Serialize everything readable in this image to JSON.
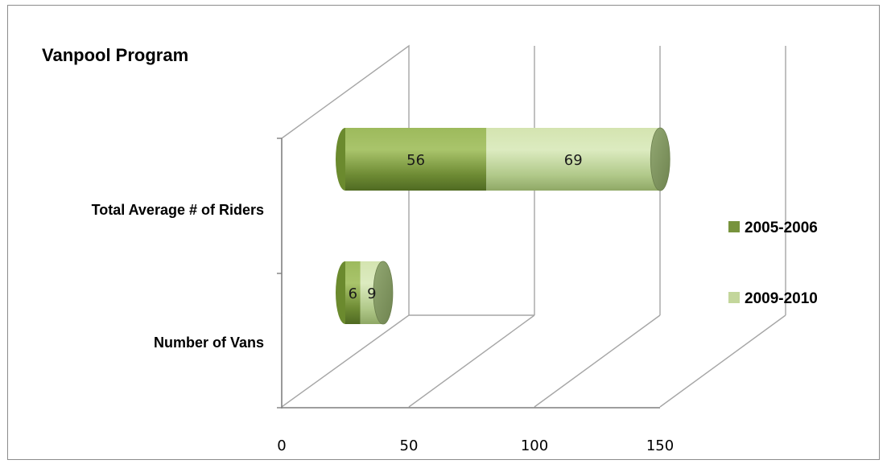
{
  "chart_data": {
    "type": "bar",
    "orientation": "horizontal",
    "style": "3d-stacked-cylinder",
    "title": "Vanpool Program",
    "categories": [
      "Total Average # of Riders",
      "Number of Vans"
    ],
    "series": [
      {
        "name": "2005-2006",
        "values": [
          56,
          6
        ],
        "color": "#77933c"
      },
      {
        "name": "2009-2010",
        "values": [
          69,
          9
        ],
        "color": "#c3d69b"
      }
    ],
    "xlim": [
      0,
      150
    ],
    "xticks": [
      "0",
      "50",
      "100",
      "150"
    ],
    "grid": true,
    "legend": "right"
  }
}
